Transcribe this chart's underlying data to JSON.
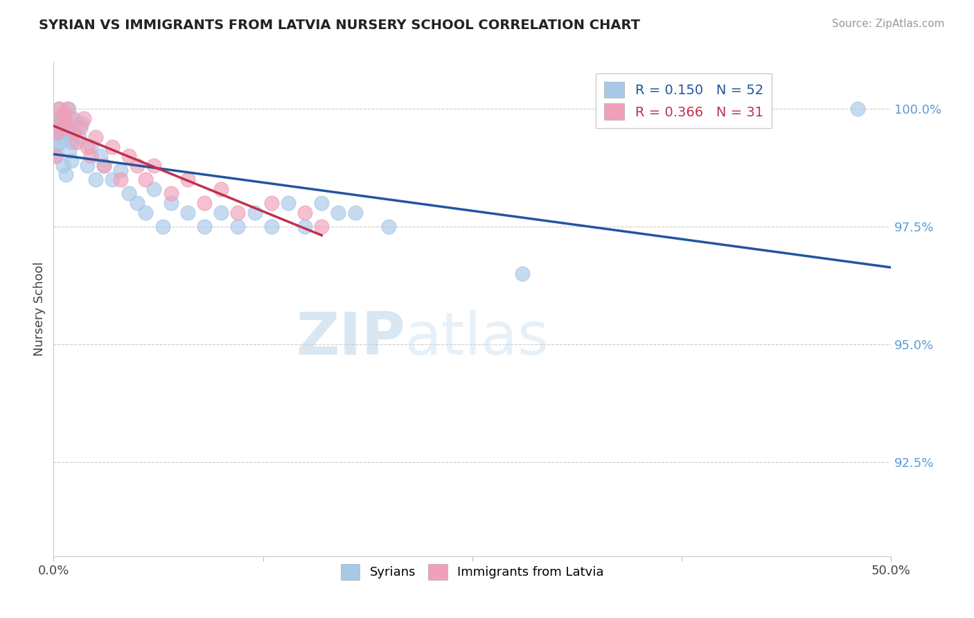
{
  "title": "SYRIAN VS IMMIGRANTS FROM LATVIA NURSERY SCHOOL CORRELATION CHART",
  "source_text": "Source: ZipAtlas.com",
  "ylabel": "Nursery School",
  "legend_label1": "Syrians",
  "legend_label2": "Immigrants from Latvia",
  "r1": 0.15,
  "n1": 52,
  "r2": 0.366,
  "n2": 31,
  "color1": "#a8c8e8",
  "color2": "#f0a0b8",
  "line_color1": "#2255a0",
  "line_color2": "#c03050",
  "xlim": [
    0.0,
    50.0
  ],
  "ylim": [
    90.5,
    101.0
  ],
  "yticks": [
    92.5,
    95.0,
    97.5,
    100.0
  ],
  "watermark_zip": "ZIP",
  "watermark_atlas": "atlas",
  "syrians_x": [
    0.1,
    0.2,
    0.3,
    0.4,
    0.5,
    0.6,
    0.7,
    0.8,
    0.9,
    1.0,
    1.1,
    1.2,
    1.3,
    1.5,
    1.7,
    2.0,
    2.2,
    2.5,
    2.8,
    3.0,
    3.5,
    4.0,
    4.5,
    5.0,
    5.5,
    6.0,
    6.5,
    7.0,
    8.0,
    9.0,
    10.0,
    11.0,
    12.0,
    13.0,
    14.0,
    15.0,
    16.0,
    17.0,
    18.0,
    20.0,
    0.15,
    0.25,
    0.35,
    0.45,
    0.55,
    0.65,
    0.75,
    0.85,
    0.95,
    1.05,
    28.0,
    48.0
  ],
  "syrians_y": [
    99.2,
    99.8,
    100.0,
    99.5,
    99.8,
    99.6,
    99.9,
    99.7,
    100.0,
    99.5,
    99.3,
    99.8,
    99.6,
    99.4,
    99.7,
    98.8,
    99.2,
    98.5,
    99.0,
    98.8,
    98.5,
    98.7,
    98.2,
    98.0,
    97.8,
    98.3,
    97.5,
    98.0,
    97.8,
    97.5,
    97.8,
    97.5,
    97.8,
    97.5,
    98.0,
    97.5,
    98.0,
    97.8,
    97.8,
    97.5,
    99.0,
    99.5,
    99.3,
    99.7,
    98.8,
    99.4,
    98.6,
    99.6,
    99.1,
    98.9,
    96.5,
    100.0
  ],
  "latvia_x": [
    0.1,
    0.2,
    0.3,
    0.4,
    0.5,
    0.6,
    0.7,
    0.8,
    1.0,
    1.2,
    1.4,
    1.6,
    1.8,
    2.0,
    2.2,
    2.5,
    3.0,
    3.5,
    4.0,
    4.5,
    5.0,
    5.5,
    6.0,
    7.0,
    8.0,
    9.0,
    10.0,
    11.0,
    13.0,
    15.0,
    16.0
  ],
  "latvia_y": [
    99.0,
    99.5,
    100.0,
    99.8,
    99.6,
    99.9,
    99.7,
    100.0,
    99.8,
    99.5,
    99.3,
    99.6,
    99.8,
    99.2,
    99.0,
    99.4,
    98.8,
    99.2,
    98.5,
    99.0,
    98.8,
    98.5,
    98.8,
    98.2,
    98.5,
    98.0,
    98.3,
    97.8,
    98.0,
    97.8,
    97.5
  ]
}
